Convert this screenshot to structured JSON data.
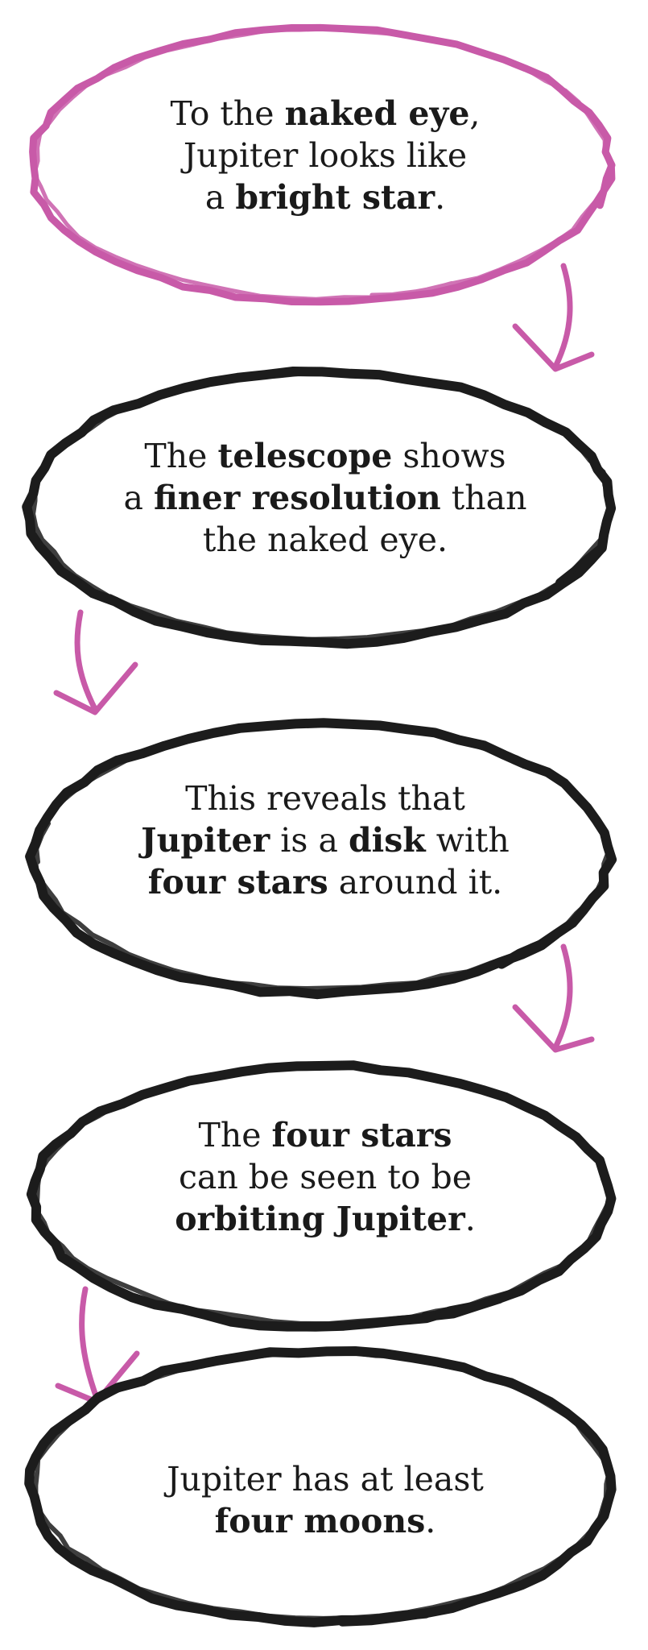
{
  "colors": {
    "first_outline": "#c85aa8",
    "outline": "#1c1c1c",
    "arrow": "#c85aa8",
    "text": "#1a1a1a"
  },
  "nodes": [
    {
      "lines": [
        [
          {
            "t": "To the ",
            "b": false
          },
          {
            "t": "naked eye",
            "b": true
          },
          {
            "t": ",",
            "b": false
          }
        ],
        [
          {
            "t": "Jupiter looks like",
            "b": false
          }
        ],
        [
          {
            "t": "a ",
            "b": false
          },
          {
            "t": "bright star",
            "b": true
          },
          {
            "t": ".",
            "b": false
          }
        ]
      ]
    },
    {
      "lines": [
        [
          {
            "t": "The ",
            "b": false
          },
          {
            "t": "telescope",
            "b": true
          },
          {
            "t": " shows",
            "b": false
          }
        ],
        [
          {
            "t": "a ",
            "b": false
          },
          {
            "t": "finer resolution",
            "b": true
          },
          {
            "t": " than",
            "b": false
          }
        ],
        [
          {
            "t": "the naked eye.",
            "b": false
          }
        ]
      ]
    },
    {
      "lines": [
        [
          {
            "t": "This reveals that",
            "b": false
          }
        ],
        [
          {
            "t": "Jupiter",
            "b": true
          },
          {
            "t": " is a ",
            "b": false
          },
          {
            "t": "disk",
            "b": true
          },
          {
            "t": " with",
            "b": false
          }
        ],
        [
          {
            "t": "four stars",
            "b": true
          },
          {
            "t": " around it.",
            "b": false
          }
        ]
      ]
    },
    {
      "lines": [
        [
          {
            "t": "The ",
            "b": false
          },
          {
            "t": "four stars",
            "b": true
          }
        ],
        [
          {
            "t": "can be seen to be",
            "b": false
          }
        ],
        [
          {
            "t": "orbiting Jupiter",
            "b": true
          },
          {
            "t": ".",
            "b": false
          }
        ]
      ]
    },
    {
      "lines": [
        [
          {
            "t": "Jupiter has at least",
            "b": false
          }
        ],
        [
          {
            "t": "four moons",
            "b": true
          },
          {
            "t": ".",
            "b": false
          }
        ]
      ]
    }
  ]
}
